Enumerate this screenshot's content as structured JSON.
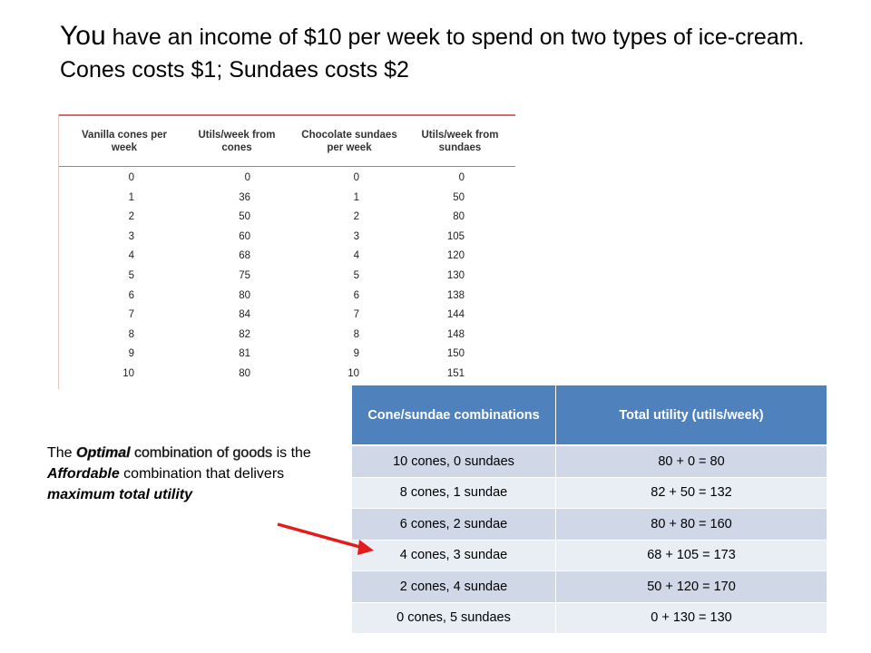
{
  "title": {
    "lead": "You",
    "rest": " have an income of $10 per week to spend on two types of ice-cream. Cones costs $1; Sundaes costs $2"
  },
  "utility_table": {
    "headers": [
      "Vanilla cones per week",
      "Utils/week from cones",
      "Chocolate sundaes per week",
      "Utils/week from sundaes"
    ],
    "rows": [
      [
        "0",
        "0",
        "0",
        "0"
      ],
      [
        "1",
        "36",
        "1",
        "50"
      ],
      [
        "2",
        "50",
        "2",
        "80"
      ],
      [
        "3",
        "60",
        "3",
        "105"
      ],
      [
        "4",
        "68",
        "4",
        "120"
      ],
      [
        "5",
        "75",
        "5",
        "130"
      ],
      [
        "6",
        "80",
        "6",
        "138"
      ],
      [
        "7",
        "84",
        "7",
        "144"
      ],
      [
        "8",
        "82",
        "8",
        "148"
      ],
      [
        "9",
        "81",
        "9",
        "150"
      ],
      [
        "10",
        "80",
        "10",
        "151"
      ]
    ]
  },
  "summary_table": {
    "headers": [
      "Cone/sundae combinations",
      "Total utility (utils/week)"
    ],
    "rows": [
      [
        "10 cones, 0 sundaes",
        "80  + 0 = 80"
      ],
      [
        "8 cones, 1 sundae",
        "82  + 50 = 132"
      ],
      [
        "6 cones, 2 sundae",
        "80  + 80 = 160"
      ],
      [
        "4 cones, 3 sundae",
        "68  + 105 = 173"
      ],
      [
        "2 cones, 4 sundae",
        "50  + 120 = 170"
      ],
      [
        "0 cones, 5 sundaes",
        "0  + 130 = 130"
      ]
    ]
  },
  "note": {
    "p1": "The ",
    "p2": "Optimal",
    "p3": " combination of goods",
    "p4": " is the ",
    "p5": "Affordable",
    "p6": " combination that delivers ",
    "p7": "maximum total utility"
  },
  "colors": {
    "header_blue": "#4f81bd",
    "row_odd": "#d0d8e8",
    "row_even": "#e9edf4",
    "arrow_red": "#e31b1b"
  }
}
